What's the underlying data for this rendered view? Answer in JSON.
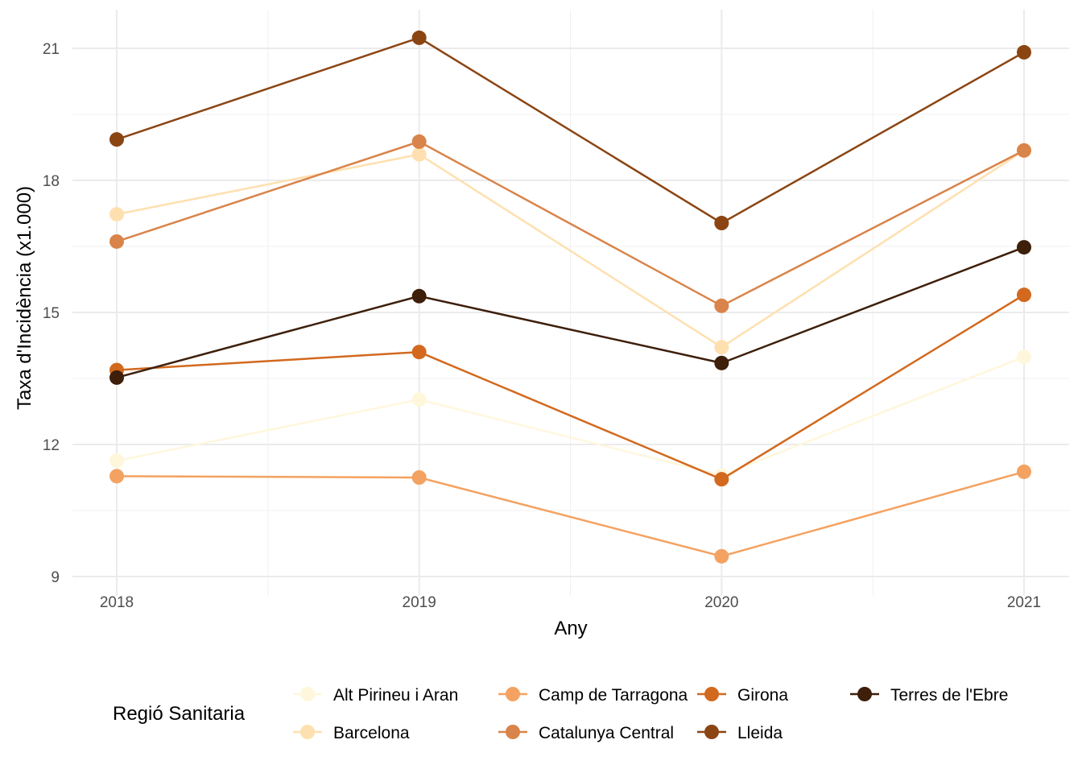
{
  "chart_data": {
    "type": "line",
    "title": "",
    "xlabel": "Any",
    "ylabel": "Taxa d'Incidència (x1.000)",
    "x": [
      2018,
      2019,
      2020,
      2021
    ],
    "x_tick_labels": [
      "2018",
      "2019",
      "2020",
      "2021"
    ],
    "y_ticks": [
      9,
      12,
      15,
      18,
      21
    ],
    "y_tick_labels": [
      "9",
      "12",
      "15",
      "18",
      "21"
    ],
    "ylim": [
      8.2,
      22.0
    ],
    "xlim": [
      2017.85,
      2021.15
    ],
    "grid": true,
    "legend": {
      "title": "Regió Sanitaria",
      "position": "bottom"
    },
    "series": [
      {
        "name": "Alt Pirineu i Aran",
        "color": "#FFF7DC",
        "values": [
          11.63,
          13.02,
          11.3,
          13.99
        ]
      },
      {
        "name": "Barcelona",
        "color": "#FEE0B0",
        "values": [
          17.23,
          18.59,
          14.21,
          18.68
        ]
      },
      {
        "name": "Camp de Tarragona",
        "color": "#F4A261",
        "values": [
          11.28,
          11.25,
          9.46,
          11.38
        ]
      },
      {
        "name": "Catalunya Central",
        "color": "#D9844A",
        "values": [
          16.61,
          18.88,
          15.15,
          18.68
        ]
      },
      {
        "name": "Girona",
        "color": "#D2691E",
        "values": [
          13.69,
          14.1,
          11.21,
          15.4
        ]
      },
      {
        "name": "Lleida",
        "color": "#8B4513",
        "values": [
          18.93,
          21.24,
          17.03,
          20.91
        ]
      },
      {
        "name": "Terres de l'Ebre",
        "color": "#3D1F0A",
        "values": [
          13.52,
          15.37,
          13.85,
          16.48
        ]
      }
    ]
  }
}
